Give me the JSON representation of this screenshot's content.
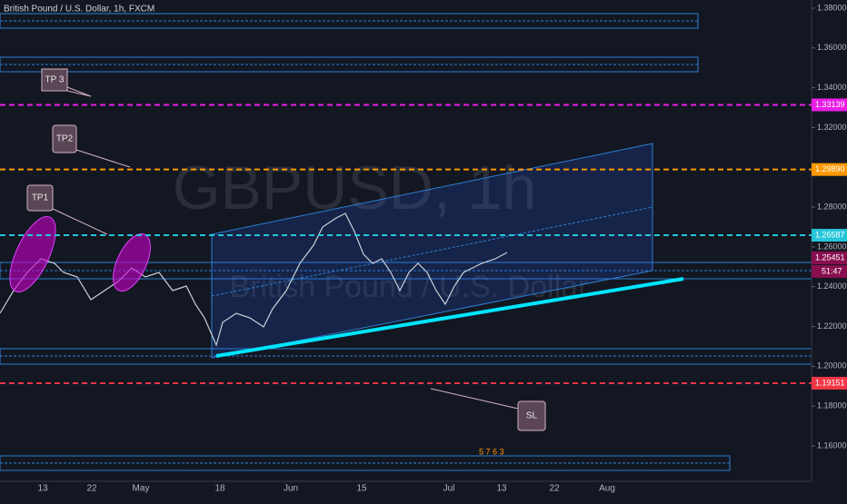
{
  "header": {
    "title": "British Pound / U.S. Dollar, 1h, FXCM"
  },
  "watermark": {
    "symbol": "GBPUSD, 1h",
    "name": "British Pound / U.S. Dollar"
  },
  "price_axis": {
    "ylim": [
      1.1422,
      1.3841
    ],
    "yticks": [
      {
        "value": 1.38,
        "label": "1.38000"
      },
      {
        "value": 1.36,
        "label": "1.36000"
      },
      {
        "value": 1.34,
        "label": "1.34000"
      },
      {
        "value": 1.32,
        "label": "1.32000"
      },
      {
        "value": 1.28,
        "label": "1.28000"
      },
      {
        "value": 1.26,
        "label": "1.26000"
      },
      {
        "value": 1.24,
        "label": "1.24000"
      },
      {
        "value": 1.22,
        "label": "1.22000"
      },
      {
        "value": 1.2,
        "label": "1.20000"
      },
      {
        "value": 1.18,
        "label": "1.18000"
      },
      {
        "value": 1.16,
        "label": "1.16000"
      }
    ],
    "price_tags": [
      {
        "value": 1.33139,
        "label": "1.33139",
        "color": "#e91ee6",
        "line": true
      },
      {
        "value": 1.2989,
        "label": "1.29890",
        "color": "#ff9800",
        "line": true
      },
      {
        "value": 1.26587,
        "label": "1.26587",
        "color": "#26c6da",
        "line": true
      },
      {
        "value": 1.25451,
        "label": "1.25451",
        "color": "#880e4f",
        "line": false
      },
      {
        "value": 1.19151,
        "label": "1.19151",
        "color": "#f23645",
        "line": true
      }
    ],
    "countdown": "51:47"
  },
  "time_axis": [
    "13",
    "22",
    "May",
    "18",
    "Jun",
    "15",
    "Jul",
    "13",
    "22",
    "Aug"
  ],
  "annotations": [
    "TP 3",
    "TP2",
    "TP1",
    "SL"
  ],
  "events": "5 7 6 3"
}
